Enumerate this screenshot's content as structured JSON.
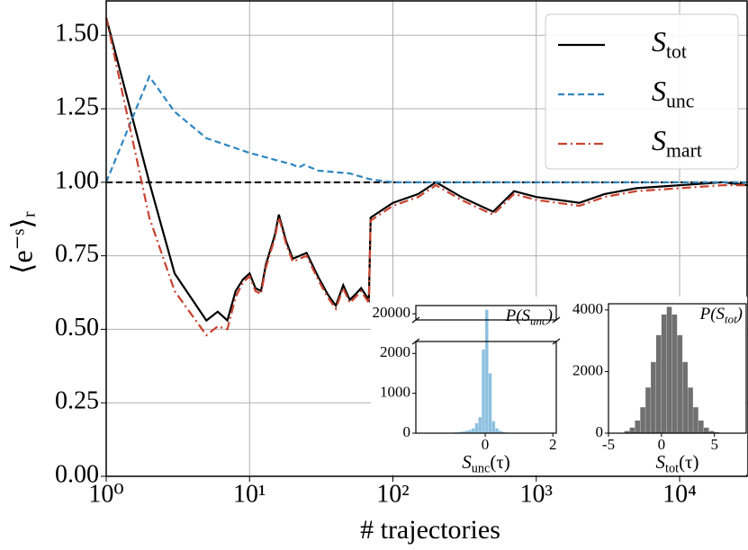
{
  "chart_data": [
    {
      "type": "line",
      "xlabel": "# trajectories",
      "ylabel": "⟨e⁻ˢ⟩ᵣ",
      "xscale": "log",
      "grid": true,
      "xlim": [
        1,
        30000
      ],
      "ylim": [
        0,
        1.62
      ],
      "xticks": [
        {
          "value": 1,
          "label": "10⁰"
        },
        {
          "value": 10,
          "label": "10¹"
        },
        {
          "value": 100,
          "label": "10²"
        },
        {
          "value": 1000,
          "label": "10³"
        },
        {
          "value": 10000,
          "label": "10⁴"
        }
      ],
      "yticks": [
        {
          "value": 0,
          "label": "0.00"
        },
        {
          "value": 0.25,
          "label": "0.25"
        },
        {
          "value": 0.5,
          "label": "0.50"
        },
        {
          "value": 0.75,
          "label": "0.75"
        },
        {
          "value": 1,
          "label": "1.00"
        },
        {
          "value": 1.25,
          "label": "1.25"
        },
        {
          "value": 1.5,
          "label": "1.50"
        }
      ],
      "hline": {
        "value": 1,
        "color": "#000000",
        "style": "dashed"
      },
      "legend": "upper right",
      "series": [
        {
          "name": [
            "S",
            "tot"
          ],
          "color": "#000000",
          "style": "solid",
          "x": [
            1,
            2,
            3,
            5,
            6,
            7,
            8,
            9,
            10,
            11,
            12,
            13,
            15,
            16,
            18,
            20,
            25,
            30,
            35,
            40,
            45,
            50,
            55,
            60,
            68,
            70,
            100,
            150,
            200,
            300,
            500,
            700,
            1000,
            2000,
            3000,
            5000,
            10000,
            20000,
            30000
          ],
          "values": [
            1.56,
            1.0,
            0.69,
            0.53,
            0.56,
            0.53,
            0.63,
            0.67,
            0.69,
            0.64,
            0.63,
            0.72,
            0.82,
            0.89,
            0.8,
            0.74,
            0.76,
            0.68,
            0.62,
            0.58,
            0.65,
            0.6,
            0.62,
            0.64,
            0.6,
            0.88,
            0.93,
            0.96,
            1.0,
            0.95,
            0.9,
            0.97,
            0.95,
            0.93,
            0.96,
            0.98,
            0.99,
            1.0,
            0.99
          ]
        },
        {
          "name": [
            "S",
            "unc"
          ],
          "color": "#2e86c1",
          "style": "dashed",
          "x": [
            1,
            2,
            3,
            5,
            10,
            20,
            22,
            24,
            30,
            50,
            70,
            100,
            1000,
            30000
          ],
          "values": [
            1.0,
            1.36,
            1.24,
            1.15,
            1.1,
            1.06,
            1.05,
            1.06,
            1.04,
            1.03,
            1.01,
            1.0,
            1.0,
            1.0
          ]
        },
        {
          "name": [
            "S",
            "mart"
          ],
          "color": "#c9432f",
          "style": "dashdot",
          "x": [
            1,
            2,
            3,
            5,
            6,
            7,
            8,
            9,
            10,
            11,
            12,
            13,
            15,
            16,
            18,
            20,
            25,
            30,
            35,
            40,
            45,
            50,
            55,
            60,
            68,
            70,
            100,
            150,
            200,
            300,
            500,
            700,
            1000,
            2000,
            3000,
            5000,
            10000,
            20000,
            30000
          ],
          "values": [
            1.56,
            0.88,
            0.63,
            0.48,
            0.51,
            0.5,
            0.61,
            0.66,
            0.68,
            0.63,
            0.62,
            0.71,
            0.81,
            0.88,
            0.79,
            0.73,
            0.75,
            0.67,
            0.61,
            0.57,
            0.64,
            0.59,
            0.61,
            0.63,
            0.59,
            0.87,
            0.92,
            0.95,
            0.99,
            0.94,
            0.89,
            0.96,
            0.94,
            0.92,
            0.95,
            0.97,
            0.98,
            0.99,
            0.99
          ]
        }
      ]
    },
    {
      "type": "histogram",
      "title": [
        "P(S",
        "unc",
        ")"
      ],
      "xlabel": [
        "S",
        "unc",
        "(τ)"
      ],
      "color": "#8ec0e0",
      "bins": [
        -1.0,
        -0.9,
        -0.8,
        -0.7,
        -0.6,
        -0.5,
        -0.4,
        -0.3,
        -0.2,
        -0.1,
        0.0,
        0.1,
        0.2,
        0.3,
        0.4,
        0.5,
        0.6,
        0.7,
        0.8
      ],
      "values": [
        10,
        20,
        30,
        40,
        60,
        80,
        120,
        250,
        400,
        2100,
        20200,
        1500,
        300,
        120,
        60,
        30,
        15,
        10
      ],
      "xlim": [
        -2.05,
        2.1
      ],
      "xticks": [
        0,
        2
      ],
      "ylim": [
        [
          0,
          2300
        ],
        [
          19700,
          20400
        ]
      ],
      "yticks": [
        0,
        1000,
        2000,
        20000
      ]
    },
    {
      "type": "histogram",
      "title": [
        "P(S",
        "tot",
        ")"
      ],
      "xlabel": [
        "S",
        "tot",
        "(τ)"
      ],
      "color": "#707070",
      "bins": [
        -3.5,
        -3.0,
        -2.5,
        -2.0,
        -1.5,
        -1.0,
        -0.5,
        0.0,
        0.5,
        1.0,
        1.5,
        2.0,
        2.5,
        3.0,
        3.5,
        4.0,
        4.5,
        5.0,
        5.5,
        6.0,
        6.5
      ],
      "values": [
        69,
        180,
        410,
        840,
        1480,
        2310,
        3180,
        3850,
        4100,
        3850,
        3180,
        2310,
        1480,
        840,
        410,
        180,
        69,
        30,
        12,
        5
      ],
      "xlim": [
        -5,
        8
      ],
      "xticks": [
        -5,
        0,
        5
      ],
      "ylim": [
        0,
        4200
      ],
      "yticks": [
        0,
        2000,
        4000
      ]
    }
  ]
}
